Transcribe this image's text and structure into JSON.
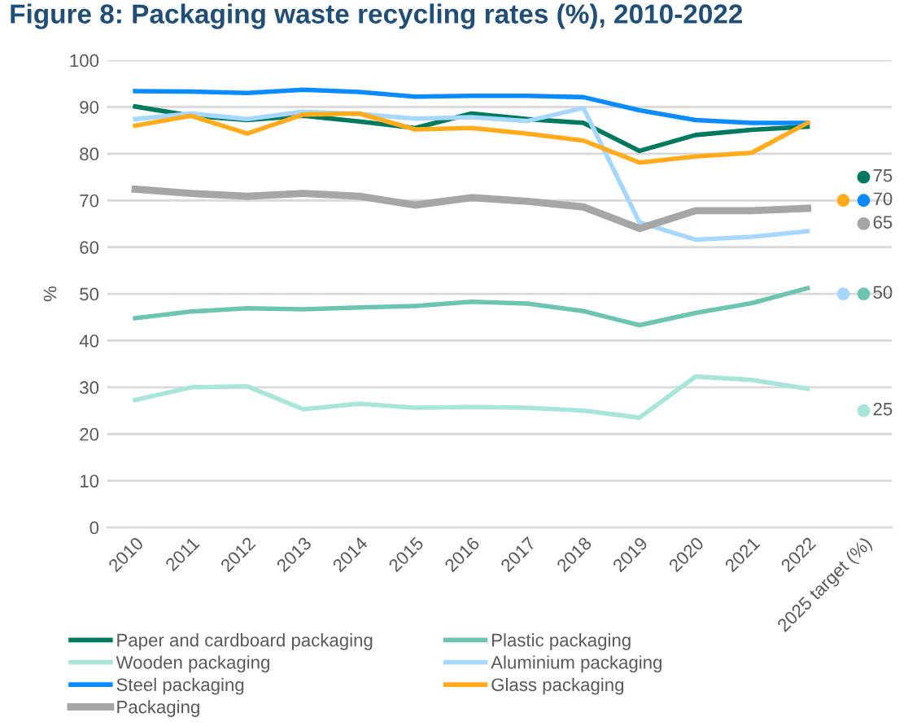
{
  "chart_data": {
    "type": "line",
    "title": "Figure 8: Packaging waste recycling rates (%), 2010-2022",
    "ylabel": "%",
    "categories": [
      "2010",
      "2011",
      "2012",
      "2013",
      "2014",
      "2015",
      "2016",
      "2017",
      "2018",
      "2019",
      "2020",
      "2021",
      "2022",
      "2025 target (%)"
    ],
    "ylim": [
      0,
      100
    ],
    "yticks": [
      0,
      10,
      20,
      30,
      40,
      50,
      60,
      70,
      80,
      90,
      100
    ],
    "grid": "y",
    "legend": "bottom",
    "marker": "none",
    "line_style": "solid",
    "series": [
      {
        "name": "Paper and cardboard packaging",
        "color": "#007a5e",
        "values": [
          90.1,
          88.1,
          87.2,
          88.1,
          86.9,
          85.5,
          88.6,
          87.4,
          86.6,
          80.6,
          84.0,
          85.1,
          85.8,
          null
        ]
      },
      {
        "name": "Plastic packaging",
        "color": "#6cc5b0",
        "values": [
          44.8,
          46.2,
          46.9,
          46.7,
          47.1,
          47.4,
          48.3,
          47.9,
          46.3,
          43.3,
          45.9,
          48.0,
          51.2,
          null
        ]
      },
      {
        "name": "Wooden packaging",
        "color": "#a8e6da",
        "values": [
          27.3,
          30.0,
          30.2,
          25.3,
          26.5,
          25.6,
          25.8,
          25.6,
          25.0,
          23.5,
          32.3,
          31.6,
          29.7,
          null
        ]
      },
      {
        "name": "Aluminium packaging",
        "color": "#a6d8ff",
        "values": [
          87.4,
          88.6,
          87.4,
          89.0,
          88.5,
          87.5,
          87.8,
          87.0,
          89.8,
          65.3,
          61.6,
          62.2,
          63.4,
          null
        ]
      },
      {
        "name": "Steel packaging",
        "color": "#0a8cff",
        "values": [
          93.4,
          93.3,
          93.0,
          93.7,
          93.2,
          92.2,
          92.4,
          92.4,
          92.1,
          89.3,
          87.2,
          86.6,
          86.6,
          null
        ]
      },
      {
        "name": "Glass packaging",
        "color": "#ffab1a",
        "values": [
          86.0,
          88.1,
          84.3,
          88.4,
          88.6,
          85.2,
          85.5,
          84.3,
          82.8,
          78.1,
          79.4,
          80.2,
          86.6,
          null
        ]
      },
      {
        "name": "Packaging",
        "color": "#a6a6a6",
        "values": [
          72.4,
          71.5,
          70.9,
          71.5,
          70.9,
          69.0,
          70.6,
          69.8,
          68.6,
          64.0,
          67.8,
          67.8,
          68.3,
          null
        ]
      },
      {
        "type": "scatter",
        "marker": "circle",
        "x": [
          "2025 target (%)",
          "2025 target (%)",
          "2025 target (%)",
          "2025 target (%)",
          "2025 target (%)",
          "2025 target (%)",
          "2025 target (%)"
        ],
        "values": [
          75,
          70,
          70,
          65,
          50,
          50,
          25
        ],
        "colors": [
          "#007a5e",
          "#ffab1a",
          "#0a8cff",
          "#a6a6a6",
          "#a6d8ff",
          "#6cc5b0",
          "#a8e6da"
        ],
        "value_labels": [
          "75",
          null,
          "70",
          "65",
          null,
          "50",
          "25"
        ]
      }
    ]
  }
}
